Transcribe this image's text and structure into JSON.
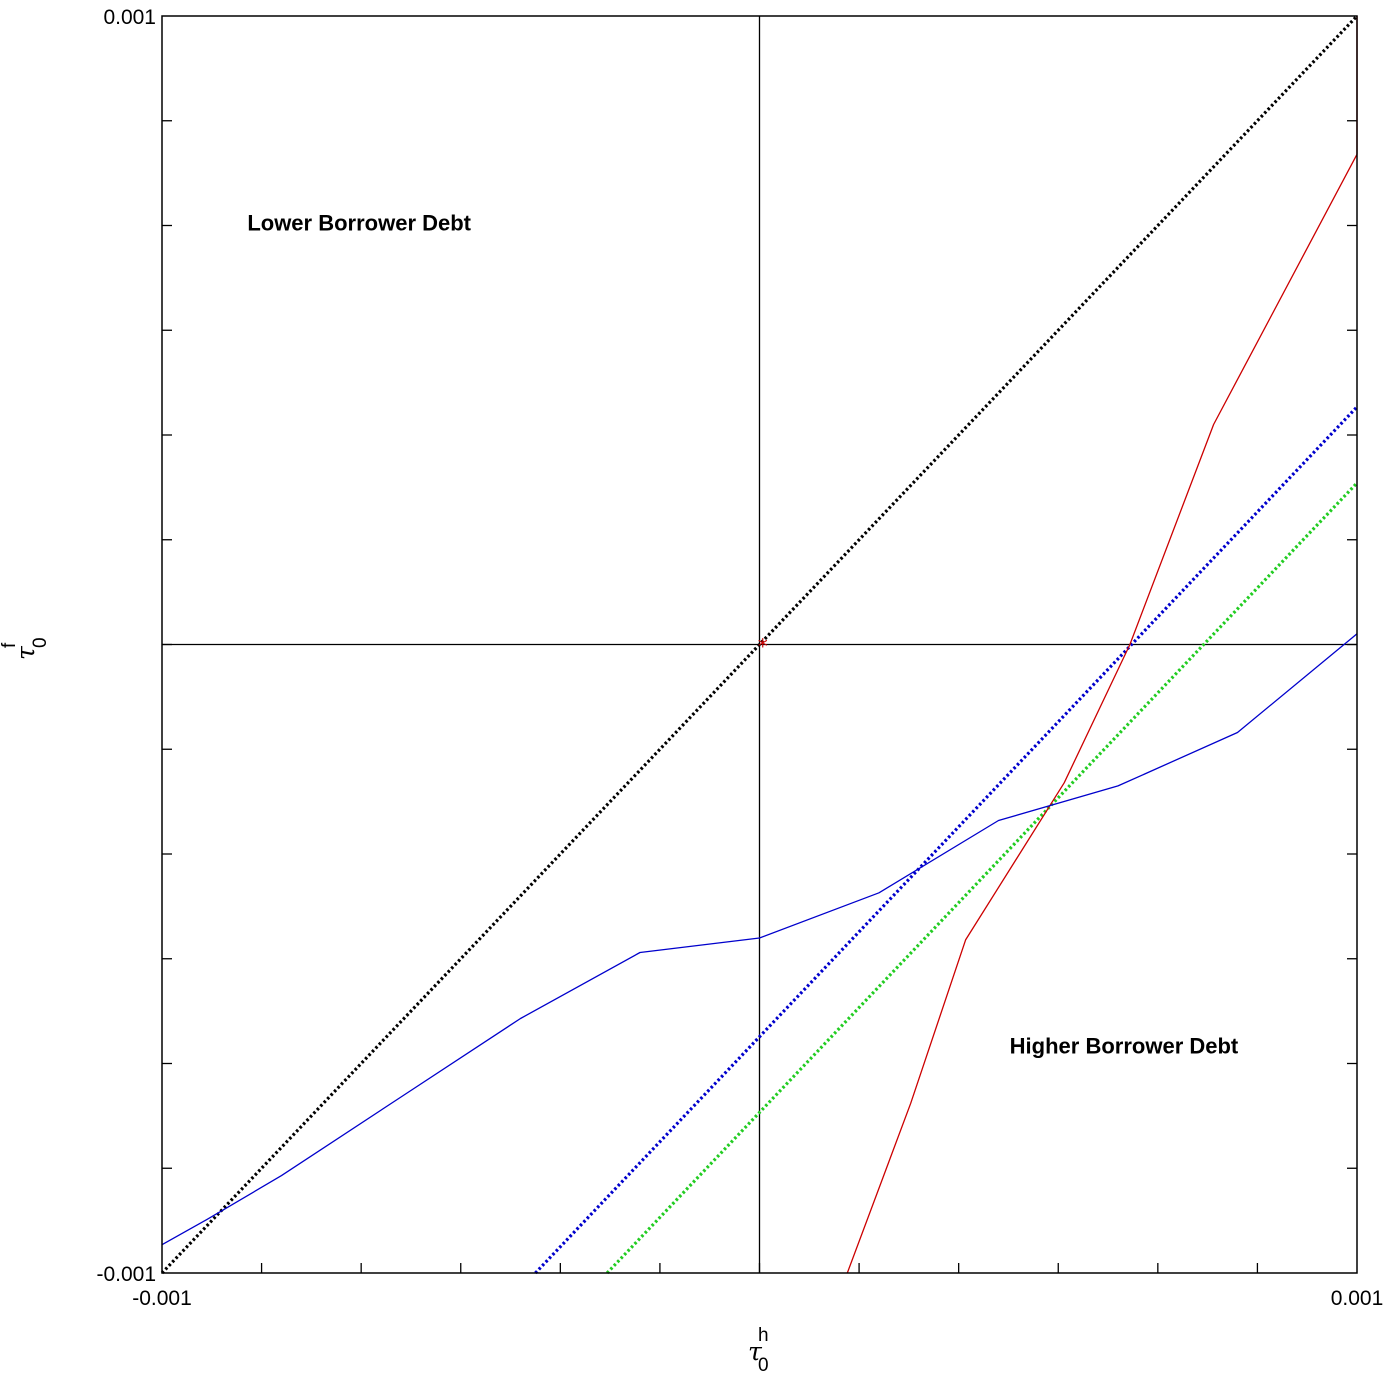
{
  "chart_data": {
    "type": "line",
    "title": "",
    "x_axis": {
      "label": {
        "symbol": "τ",
        "sup": "h",
        "sub": "0"
      },
      "range": [
        -0.001,
        0.001
      ],
      "tick_labels": [
        "-0.001",
        "0.001"
      ],
      "minor_ticks": 11
    },
    "y_axis": {
      "label": {
        "symbol": "τ",
        "sup": "f",
        "sub": "0"
      },
      "range": [
        -0.001,
        0.001
      ],
      "tick_labels": [
        "-0.001",
        "0.001"
      ],
      "minor_ticks": 11
    },
    "reference_lines": {
      "x": 0,
      "y": 0,
      "color": "#000000"
    },
    "annotations": [
      {
        "text": "Lower Borrower Debt",
        "x": -0.00067,
        "y": 0.00067
      },
      {
        "text": "Higher Borrower Debt",
        "x": 0.00061,
        "y": -0.00064
      }
    ],
    "marker": {
      "symbol": "*",
      "x": 5.5e-06,
      "y": 0.0,
      "color": "#cc0000"
    },
    "series": [
      {
        "id": "black-diagonal",
        "color": "#000000",
        "style": "dotted",
        "points": [
          [
            -0.001,
            -0.001
          ],
          [
            0.001,
            0.001
          ]
        ]
      },
      {
        "id": "blue-dotted-line",
        "color": "#0000cc",
        "style": "dotted",
        "points": [
          [
            -0.000375,
            -0.001
          ],
          [
            0.001,
            0.000378
          ]
        ]
      },
      {
        "id": "green-dotted-line",
        "color": "#22cc22",
        "style": "dotted",
        "points": [
          [
            -0.000255,
            -0.001
          ],
          [
            0.001,
            0.000257
          ]
        ]
      },
      {
        "id": "red-line",
        "color": "#cc0000",
        "style": "solid",
        "points": [
          [
            0.000147,
            -0.001
          ],
          [
            0.000253,
            -0.00073
          ],
          [
            0.000345,
            -0.00047
          ],
          [
            0.00051,
            -0.00022
          ],
          [
            0.00062,
            0.0
          ],
          [
            0.00076,
            0.00035
          ],
          [
            0.001,
            0.00078
          ],
          [
            0.001,
            0.001
          ]
        ]
      },
      {
        "id": "blue-curve",
        "color": "#0000cc",
        "style": "solid",
        "points": [
          [
            -0.001,
            -0.000955
          ],
          [
            -0.000925,
            -0.000915
          ],
          [
            -0.0008,
            -0.000845
          ],
          [
            -0.0006,
            -0.00072
          ],
          [
            -0.0004,
            -0.000595
          ],
          [
            -0.0002,
            -0.00049
          ],
          [
            0.0,
            -0.000467
          ],
          [
            0.0002,
            -0.000395
          ],
          [
            0.0004,
            -0.00028
          ],
          [
            0.0006,
            -0.000225
          ],
          [
            0.0008,
            -0.00014
          ],
          [
            0.001,
            1.7e-05
          ]
        ]
      }
    ]
  }
}
